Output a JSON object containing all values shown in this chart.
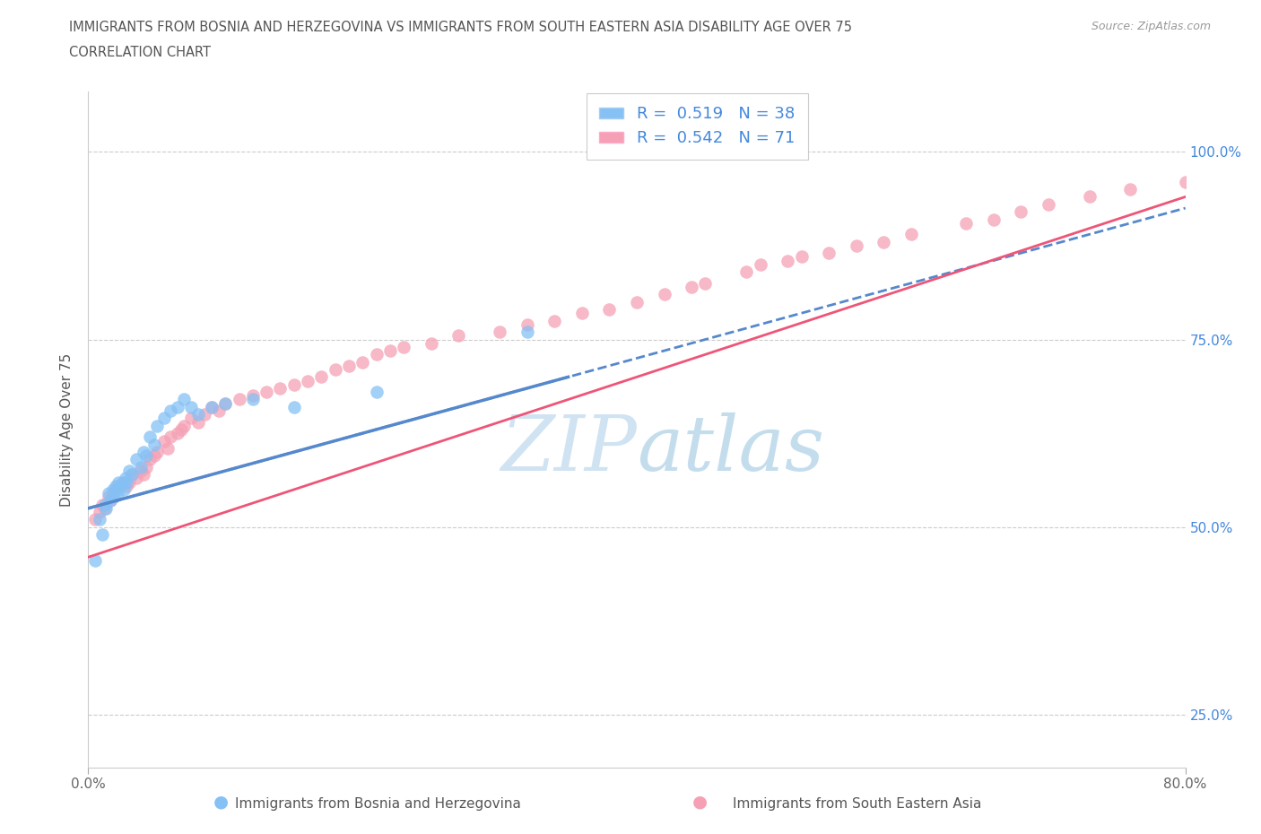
{
  "title_line1": "IMMIGRANTS FROM BOSNIA AND HERZEGOVINA VS IMMIGRANTS FROM SOUTH EASTERN ASIA DISABILITY AGE OVER 75",
  "title_line2": "CORRELATION CHART",
  "source_text": "Source: ZipAtlas.com",
  "ylabel": "Disability Age Over 75",
  "xlim": [
    0.0,
    0.8
  ],
  "ylim": [
    0.18,
    1.08
  ],
  "yticks": [
    0.25,
    0.5,
    0.75,
    1.0
  ],
  "yticklabels": [
    "25.0%",
    "50.0%",
    "75.0%",
    "100.0%"
  ],
  "legend_label1": "Immigrants from Bosnia and Herzegovina",
  "legend_label2": "Immigrants from South Eastern Asia",
  "R1": 0.519,
  "N1": 38,
  "R2": 0.542,
  "N2": 71,
  "color1": "#85c1f5",
  "color2": "#f5a0b5",
  "trendline1_color": "#5588cc",
  "trendline2_color": "#ee5577",
  "watermark_color": "#c8dff0",
  "series1_x": [
    0.005,
    0.008,
    0.01,
    0.012,
    0.013,
    0.015,
    0.016,
    0.018,
    0.019,
    0.02,
    0.021,
    0.022,
    0.023,
    0.025,
    0.026,
    0.027,
    0.028,
    0.03,
    0.032,
    0.035,
    0.038,
    0.04,
    0.042,
    0.045,
    0.048,
    0.05,
    0.055,
    0.06,
    0.065,
    0.07,
    0.075,
    0.08,
    0.09,
    0.1,
    0.12,
    0.15,
    0.21,
    0.32
  ],
  "series1_y": [
    0.455,
    0.51,
    0.49,
    0.53,
    0.525,
    0.545,
    0.535,
    0.55,
    0.54,
    0.555,
    0.545,
    0.56,
    0.555,
    0.56,
    0.55,
    0.565,
    0.56,
    0.575,
    0.57,
    0.59,
    0.58,
    0.6,
    0.595,
    0.62,
    0.61,
    0.635,
    0.645,
    0.655,
    0.66,
    0.67,
    0.66,
    0.65,
    0.66,
    0.665,
    0.67,
    0.66,
    0.68,
    0.76
  ],
  "series2_x": [
    0.005,
    0.008,
    0.01,
    0.012,
    0.015,
    0.016,
    0.018,
    0.02,
    0.022,
    0.025,
    0.028,
    0.03,
    0.032,
    0.035,
    0.038,
    0.04,
    0.042,
    0.045,
    0.048,
    0.05,
    0.055,
    0.058,
    0.06,
    0.065,
    0.068,
    0.07,
    0.075,
    0.08,
    0.085,
    0.09,
    0.095,
    0.1,
    0.11,
    0.12,
    0.13,
    0.14,
    0.15,
    0.16,
    0.17,
    0.18,
    0.19,
    0.2,
    0.21,
    0.22,
    0.23,
    0.25,
    0.27,
    0.3,
    0.32,
    0.34,
    0.36,
    0.38,
    0.4,
    0.42,
    0.44,
    0.45,
    0.48,
    0.49,
    0.51,
    0.52,
    0.54,
    0.56,
    0.58,
    0.6,
    0.64,
    0.66,
    0.68,
    0.7,
    0.73,
    0.76,
    0.8
  ],
  "series2_y": [
    0.51,
    0.52,
    0.53,
    0.525,
    0.54,
    0.535,
    0.545,
    0.55,
    0.555,
    0.56,
    0.555,
    0.56,
    0.57,
    0.565,
    0.575,
    0.57,
    0.58,
    0.59,
    0.595,
    0.6,
    0.615,
    0.605,
    0.62,
    0.625,
    0.63,
    0.635,
    0.645,
    0.64,
    0.65,
    0.66,
    0.655,
    0.665,
    0.67,
    0.675,
    0.68,
    0.685,
    0.69,
    0.695,
    0.7,
    0.71,
    0.715,
    0.72,
    0.73,
    0.735,
    0.74,
    0.745,
    0.755,
    0.76,
    0.77,
    0.775,
    0.785,
    0.79,
    0.8,
    0.81,
    0.82,
    0.825,
    0.84,
    0.85,
    0.855,
    0.86,
    0.865,
    0.875,
    0.88,
    0.89,
    0.905,
    0.91,
    0.92,
    0.93,
    0.94,
    0.95,
    0.96
  ],
  "trendline1_x0": 0.0,
  "trendline1_y0": 0.525,
  "trendline1_x1": 0.35,
  "trendline1_y1": 0.7,
  "trendline2_x0": 0.0,
  "trendline2_y0": 0.46,
  "trendline2_x1": 0.8,
  "trendline2_y1": 0.94
}
